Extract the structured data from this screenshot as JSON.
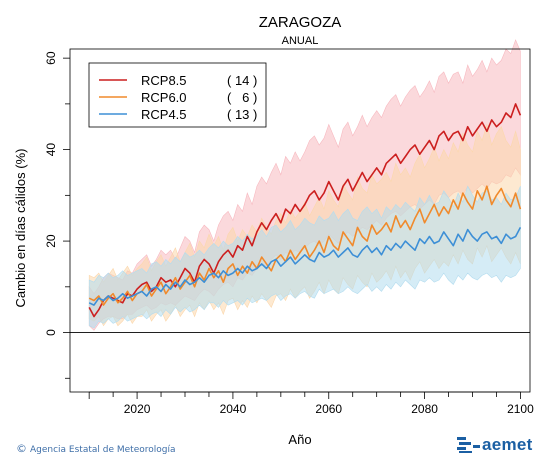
{
  "chart_data": {
    "type": "line",
    "title": "ZARAGOZA",
    "subtitle": "ANUAL",
    "xlabel": "Año",
    "ylabel": "Cambio en días cálidos (%)",
    "xlim": [
      2006,
      2102
    ],
    "ylim": [
      -13,
      62
    ],
    "xticks": [
      2020,
      2040,
      2060,
      2080,
      2100
    ],
    "yticks": [
      0,
      20,
      40,
      60
    ],
    "zero_line": true,
    "legend_position": "top-left",
    "x_start": 2010,
    "x_end": 2100,
    "series": [
      {
        "name": "RCP8.5",
        "count": "( 14 )",
        "color": "#cc1f1f",
        "band_color": "#f7b9c0",
        "values": [
          5.5,
          3.5,
          5.0,
          7.0,
          8.0,
          7.5,
          7.0,
          6.5,
          8.5,
          8.0,
          9.5,
          10.5,
          11.0,
          9.0,
          10.0,
          12.0,
          11.0,
          11.5,
          10.0,
          12.0,
          14.0,
          13.0,
          11.0,
          14.5,
          16.0,
          15.0,
          13.0,
          15.5,
          17.0,
          18.0,
          16.5,
          19.0,
          18.0,
          21.0,
          19.0,
          22.0,
          24.0,
          22.5,
          24.5,
          26.0,
          24.0,
          27.0,
          26.0,
          28.0,
          26.5,
          28.0,
          30.0,
          31.0,
          29.0,
          30.5,
          33.0,
          31.0,
          29.0,
          32.0,
          33.5,
          31.0,
          33.0,
          35.0,
          33.0,
          34.5,
          36.0,
          34.5,
          37.0,
          38.0,
          39.0,
          37.0,
          38.5,
          40.0,
          41.0,
          39.0,
          40.5,
          42.0,
          40.0,
          43.0,
          44.0,
          42.0,
          43.5,
          44.0,
          42.0,
          45.0,
          43.0,
          44.5,
          46.0,
          44.0,
          46.5,
          45.0,
          46.0,
          48.0,
          47.0,
          50.0,
          47.5
        ],
        "band_low": [
          1.5,
          0.5,
          2.0,
          3.0,
          3.5,
          3.5,
          3.0,
          3.0,
          4.0,
          4.0,
          5.0,
          5.5,
          6.0,
          5.0,
          5.5,
          6.5,
          6.0,
          6.5,
          6.0,
          7.0,
          8.0,
          7.5,
          7.0,
          8.5,
          9.5,
          9.0,
          8.0,
          9.5,
          10.5,
          11.0,
          10.0,
          12.0,
          11.5,
          13.0,
          12.5,
          14.0,
          15.0,
          14.5,
          16.0,
          17.0,
          16.0,
          17.5,
          17.0,
          18.0,
          17.5,
          18.5,
          19.5,
          20.0,
          19.0,
          20.0,
          21.5,
          20.5,
          19.5,
          21.0,
          22.0,
          21.0,
          22.0,
          23.0,
          22.5,
          23.5,
          24.5,
          23.5,
          25.0,
          26.0,
          26.5,
          25.5,
          26.5,
          27.5,
          28.0,
          27.0,
          28.0,
          29.0,
          28.0,
          30.0,
          30.5,
          29.5,
          30.5,
          31.0,
          30.0,
          32.0,
          30.5,
          31.5,
          32.5,
          31.5,
          33.0,
          32.5,
          33.0,
          34.5,
          34.0,
          36.0,
          34.5
        ],
        "band_high": [
          10.0,
          8.5,
          10.0,
          12.0,
          13.0,
          12.5,
          12.0,
          11.5,
          13.5,
          13.0,
          15.0,
          16.0,
          17.0,
          14.5,
          16.0,
          18.0,
          17.0,
          18.0,
          16.0,
          18.5,
          21.0,
          20.0,
          17.5,
          22.0,
          23.5,
          22.5,
          20.0,
          23.5,
          25.5,
          26.5,
          24.5,
          28.0,
          26.5,
          30.5,
          28.0,
          32.0,
          34.0,
          32.5,
          35.0,
          37.0,
          34.5,
          38.5,
          37.0,
          39.5,
          37.5,
          39.5,
          42.0,
          43.0,
          41.0,
          42.5,
          45.5,
          43.0,
          40.5,
          44.5,
          46.0,
          43.0,
          45.0,
          47.5,
          45.0,
          47.0,
          48.5,
          47.0,
          49.5,
          51.0,
          52.0,
          49.5,
          51.5,
          53.0,
          54.0,
          51.5,
          53.0,
          55.0,
          52.5,
          56.0,
          57.0,
          54.5,
          56.5,
          57.0,
          54.5,
          58.5,
          56.0,
          57.5,
          59.5,
          57.0,
          60.0,
          58.5,
          59.5,
          62.0,
          61.0,
          64.0,
          61.5
        ]
      },
      {
        "name": "RCP6.0",
        "count": "(   6 )",
        "color": "#f08a2c",
        "band_color": "#fbd7ac",
        "values": [
          7.5,
          7.0,
          8.0,
          6.0,
          7.5,
          8.5,
          6.5,
          7.5,
          9.0,
          7.0,
          8.5,
          9.0,
          10.5,
          8.0,
          9.5,
          11.0,
          8.5,
          10.0,
          12.0,
          9.5,
          11.0,
          12.5,
          10.0,
          13.0,
          11.5,
          14.0,
          12.0,
          13.5,
          11.0,
          14.0,
          15.0,
          12.5,
          14.5,
          13.0,
          15.5,
          14.0,
          16.5,
          15.0,
          13.5,
          16.0,
          17.0,
          15.5,
          18.0,
          16.0,
          17.5,
          19.0,
          16.5,
          18.0,
          20.0,
          17.5,
          21.0,
          19.0,
          18.0,
          22.0,
          20.5,
          19.0,
          23.0,
          21.0,
          20.0,
          23.5,
          21.5,
          22.5,
          24.0,
          22.0,
          25.5,
          23.0,
          24.5,
          22.5,
          25.0,
          27.0,
          24.0,
          26.0,
          28.0,
          25.5,
          27.5,
          26.0,
          29.0,
          27.0,
          30.5,
          28.5,
          27.0,
          31.0,
          29.0,
          32.0,
          28.0,
          30.0,
          31.5,
          29.0,
          27.5,
          30.5,
          27.0
        ],
        "band_low": [
          3.0,
          2.5,
          3.5,
          1.5,
          3.0,
          3.5,
          1.5,
          2.5,
          4.0,
          2.0,
          3.5,
          3.5,
          5.0,
          2.5,
          4.0,
          5.0,
          2.5,
          4.0,
          6.0,
          3.5,
          5.0,
          6.0,
          3.5,
          6.5,
          5.0,
          7.0,
          5.0,
          6.5,
          4.0,
          7.0,
          7.5,
          5.0,
          7.0,
          5.5,
          8.0,
          6.5,
          8.5,
          7.0,
          5.5,
          8.0,
          8.5,
          7.0,
          9.5,
          7.5,
          9.0,
          10.0,
          7.5,
          9.0,
          11.0,
          8.5,
          11.5,
          9.5,
          8.5,
          12.0,
          10.5,
          9.5,
          12.5,
          11.0,
          10.0,
          13.0,
          11.0,
          12.0,
          13.5,
          11.5,
          14.5,
          12.0,
          13.5,
          11.5,
          14.0,
          15.5,
          13.0,
          14.5,
          16.0,
          14.0,
          15.5,
          14.5,
          17.0,
          15.0,
          18.0,
          16.0,
          15.0,
          18.5,
          16.5,
          19.0,
          15.5,
          17.0,
          18.5,
          16.5,
          15.0,
          17.5,
          15.0
        ],
        "band_high": [
          12.5,
          12.0,
          13.0,
          11.0,
          12.5,
          14.0,
          11.5,
          13.0,
          14.5,
          12.5,
          14.0,
          15.0,
          16.5,
          13.5,
          15.5,
          17.0,
          14.5,
          16.5,
          18.5,
          15.5,
          17.5,
          19.5,
          16.5,
          20.0,
          18.5,
          21.5,
          19.0,
          21.0,
          18.0,
          21.5,
          23.0,
          20.0,
          22.5,
          21.0,
          23.5,
          22.0,
          25.0,
          23.0,
          21.5,
          24.5,
          26.0,
          24.0,
          27.0,
          25.0,
          26.5,
          28.5,
          25.5,
          27.5,
          29.5,
          27.0,
          31.0,
          29.0,
          27.5,
          32.5,
          30.5,
          29.0,
          34.0,
          31.5,
          30.5,
          34.5,
          32.5,
          33.5,
          35.0,
          33.0,
          37.0,
          34.5,
          36.0,
          34.0,
          37.0,
          39.0,
          36.0,
          38.0,
          40.5,
          37.5,
          40.0,
          38.0,
          41.5,
          39.5,
          43.5,
          41.0,
          39.5,
          44.0,
          42.0,
          45.5,
          41.0,
          43.5,
          45.0,
          42.0,
          40.5,
          44.0,
          40.0
        ]
      },
      {
        "name": "RCP4.5",
        "count": "( 13 )",
        "color": "#3d8fd6",
        "band_color": "#b3dcef",
        "values": [
          6.5,
          6.0,
          7.5,
          7.0,
          8.0,
          7.0,
          7.5,
          8.5,
          7.5,
          8.0,
          8.5,
          9.0,
          8.0,
          9.5,
          10.0,
          9.0,
          10.5,
          9.5,
          11.0,
          10.0,
          11.5,
          10.5,
          11.0,
          12.0,
          11.0,
          12.5,
          13.0,
          12.0,
          13.5,
          12.5,
          13.0,
          14.0,
          13.0,
          14.5,
          13.5,
          14.0,
          15.0,
          14.0,
          15.5,
          16.0,
          14.5,
          15.5,
          16.5,
          15.0,
          16.0,
          17.0,
          16.0,
          15.5,
          17.5,
          16.5,
          17.0,
          18.0,
          16.5,
          17.5,
          18.5,
          17.0,
          16.5,
          18.0,
          19.0,
          17.5,
          18.5,
          17.0,
          19.0,
          18.0,
          19.5,
          18.5,
          20.0,
          19.0,
          18.0,
          20.5,
          19.5,
          21.0,
          19.5,
          20.0,
          22.0,
          20.5,
          19.0,
          21.5,
          20.0,
          22.5,
          21.0,
          20.0,
          21.5,
          22.0,
          20.5,
          21.0,
          19.5,
          21.5,
          20.5,
          21.0,
          23.0
        ],
        "band_low": [
          1.5,
          1.0,
          2.5,
          2.0,
          3.0,
          2.0,
          2.5,
          3.5,
          2.5,
          3.0,
          3.5,
          4.0,
          3.0,
          4.0,
          4.5,
          3.5,
          5.0,
          4.0,
          5.5,
          4.5,
          5.5,
          4.5,
          5.0,
          6.0,
          5.0,
          6.5,
          6.5,
          5.5,
          7.0,
          6.0,
          6.5,
          7.0,
          6.0,
          7.5,
          6.5,
          7.0,
          7.5,
          7.0,
          8.0,
          8.5,
          7.0,
          8.0,
          8.5,
          7.5,
          8.5,
          9.0,
          8.0,
          7.5,
          9.5,
          8.5,
          9.0,
          9.5,
          8.5,
          9.0,
          10.0,
          9.0,
          8.5,
          9.5,
          10.5,
          9.0,
          10.0,
          9.0,
          10.5,
          9.5,
          11.0,
          10.0,
          11.5,
          10.5,
          9.5,
          11.5,
          11.0,
          12.0,
          11.0,
          11.5,
          13.0,
          11.5,
          10.5,
          12.5,
          11.5,
          13.0,
          12.0,
          11.5,
          12.5,
          13.0,
          12.0,
          12.5,
          11.0,
          12.5,
          12.0,
          12.5,
          14.0
        ],
        "band_high": [
          11.5,
          11.0,
          12.5,
          12.0,
          13.0,
          12.0,
          12.5,
          13.5,
          12.5,
          13.0,
          13.5,
          14.0,
          13.0,
          15.0,
          15.5,
          14.5,
          16.0,
          15.0,
          16.5,
          15.5,
          17.5,
          16.5,
          17.0,
          18.0,
          17.0,
          18.5,
          19.5,
          18.5,
          20.0,
          19.0,
          19.5,
          21.0,
          20.0,
          21.5,
          20.5,
          21.0,
          22.5,
          21.0,
          23.0,
          23.5,
          22.0,
          23.0,
          24.5,
          22.5,
          23.5,
          25.0,
          24.0,
          23.5,
          25.5,
          24.5,
          25.0,
          26.5,
          24.5,
          26.0,
          27.0,
          25.0,
          24.5,
          26.5,
          27.5,
          26.0,
          27.0,
          25.0,
          27.5,
          26.5,
          28.0,
          27.0,
          28.5,
          27.5,
          26.5,
          29.5,
          28.0,
          30.0,
          28.0,
          28.5,
          31.0,
          29.5,
          27.5,
          30.5,
          28.5,
          32.0,
          30.0,
          28.5,
          30.5,
          31.0,
          29.0,
          29.5,
          28.0,
          30.5,
          29.0,
          29.5,
          32.0
        ]
      }
    ]
  },
  "footer": {
    "credit_symbol": "©",
    "credit": "Agencia Estatal de Meteorología",
    "logo_text": "aemet"
  }
}
